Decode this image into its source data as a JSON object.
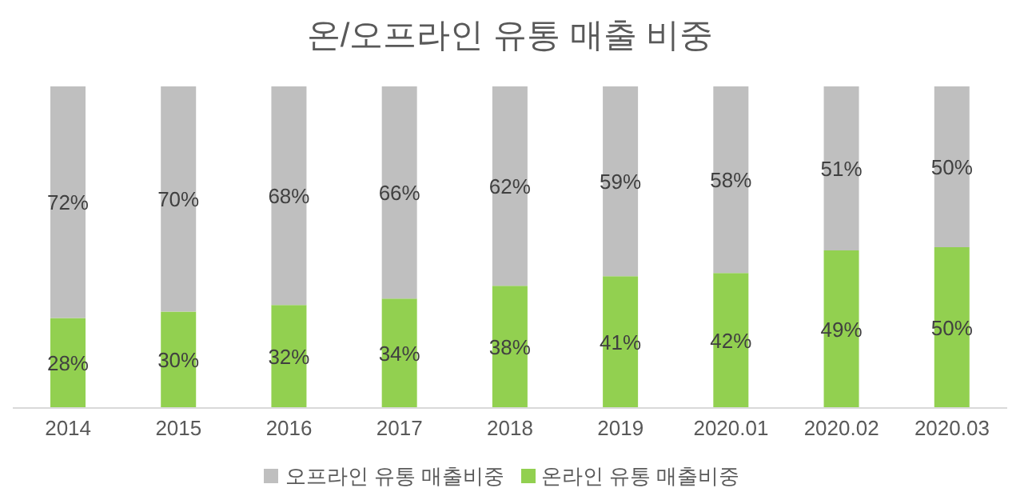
{
  "chart_data": {
    "type": "bar",
    "title": "온/오프라인 유통 매출 비중",
    "categories": [
      "2014",
      "2015",
      "2016",
      "2017",
      "2018",
      "2019",
      "2020.01",
      "2020.02",
      "2020.03"
    ],
    "stacked": true,
    "tick_labels": "x",
    "grid": false,
    "legend": "bottom",
    "series": [
      {
        "name": "온라인 유통 매출비중",
        "color": "#92d050",
        "values": [
          28,
          30,
          32,
          34,
          38,
          41,
          42,
          49,
          50
        ],
        "value_labels": [
          "28%",
          "30%",
          "32%",
          "34%",
          "38%",
          "41%",
          "42%",
          "49%",
          "50%"
        ]
      },
      {
        "name": "오프라인 유통 매출비중",
        "color": "#bfbfbf",
        "values": [
          72,
          70,
          68,
          66,
          62,
          59,
          58,
          51,
          50
        ],
        "value_labels": [
          "72%",
          "70%",
          "68%",
          "66%",
          "62%",
          "59%",
          "58%",
          "51%",
          "50%"
        ]
      }
    ]
  }
}
